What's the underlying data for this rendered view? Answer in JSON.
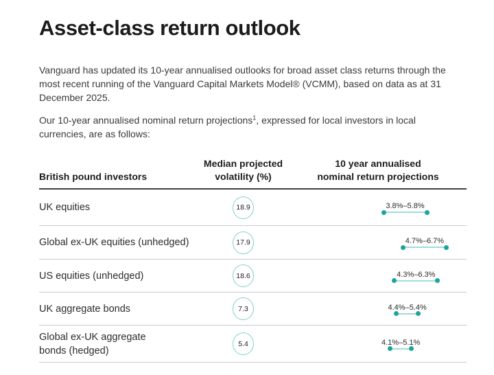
{
  "page": {
    "title": "Asset-class return outlook",
    "intro_paragraph": "Vanguard has updated its 10-year annualised outlooks for broad asset class returns through the most recent running of the Vanguard Capital Markets Model® (VCMM), based on data as at 31 December 2025.",
    "projections_sentence": {
      "before_footnote": "Our 10-year annualised nominal return projections",
      "footnote_marker": "1",
      "after_footnote": ", expressed for local investors in local currencies, are as follows:"
    }
  },
  "table": {
    "headers": {
      "col1_lines": [
        "British pound investors"
      ],
      "col2_lines": [
        "Median projected",
        "volatility (%)"
      ],
      "col3_lines": [
        "10 year annualised",
        "nominal return projections"
      ]
    },
    "rows": [
      {
        "label_lines": [
          "UK equities"
        ],
        "volatility": "18.9",
        "range_label": "3.8%–5.8%",
        "range_min": 3.8,
        "range_max": 5.8
      },
      {
        "label_lines": [
          "Global ex-UK equities (unhedged)"
        ],
        "volatility": "17.9",
        "range_label": "4.7%–6.7%",
        "range_min": 4.7,
        "range_max": 6.7
      },
      {
        "label_lines": [
          "US equities (unhedged)"
        ],
        "volatility": "18.6",
        "range_label": "4.3%–6.3%",
        "range_min": 4.3,
        "range_max": 6.3
      },
      {
        "label_lines": [
          "UK aggregate bonds"
        ],
        "volatility": "7.3",
        "range_label": "4.4%–5.4%",
        "range_min": 4.4,
        "range_max": 5.4
      },
      {
        "label_lines": [
          "Global ex-UK aggregate",
          "bonds (hedged)"
        ],
        "volatility": "5.4",
        "range_label": "4.1%–5.1%",
        "range_min": 4.1,
        "range_max": 5.1
      }
    ]
  },
  "chart_data": {
    "type": "table",
    "title": "Asset-class return outlook",
    "columns": [
      "British pound investors",
      "Median projected volatility (%)",
      "10 year annualised nominal return projections"
    ],
    "rows": [
      {
        "asset": "UK equities",
        "median_projected_volatility_pct": 18.9,
        "return_low_pct": 3.8,
        "return_high_pct": 5.8
      },
      {
        "asset": "Global ex-UK equities (unhedged)",
        "median_projected_volatility_pct": 17.9,
        "return_low_pct": 4.7,
        "return_high_pct": 6.7
      },
      {
        "asset": "US equities (unhedged)",
        "median_projected_volatility_pct": 18.6,
        "return_low_pct": 4.3,
        "return_high_pct": 6.3
      },
      {
        "asset": "UK aggregate bonds",
        "median_projected_volatility_pct": 7.3,
        "return_low_pct": 4.4,
        "return_high_pct": 5.4
      },
      {
        "asset": "Global ex-UK aggregate bonds (hedged)",
        "median_projected_volatility_pct": 5.4,
        "return_low_pct": 4.1,
        "return_high_pct": 5.1
      }
    ]
  },
  "colors": {
    "accent_teal": "#1CA49E",
    "accent_teal_light": "#A2DBD8",
    "volatility_circle_outline": "#7ED0CC"
  }
}
